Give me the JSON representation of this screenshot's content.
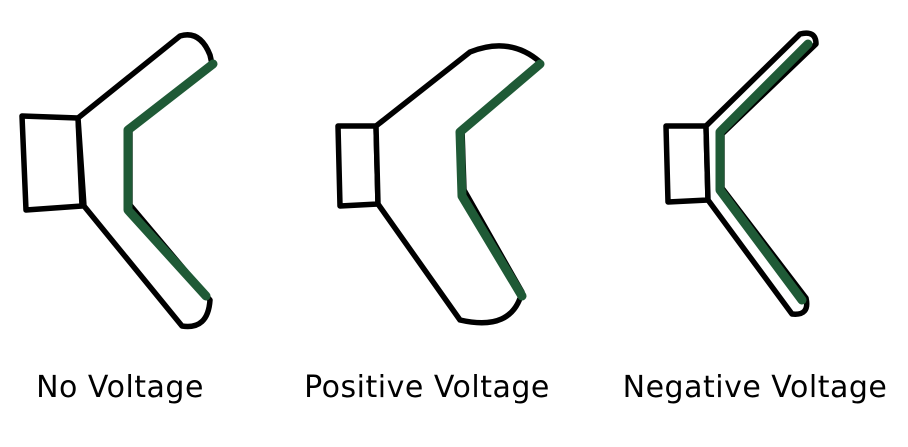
{
  "colors": {
    "outline": "#000000",
    "electrode": "#1f5a36",
    "background": "#ffffff"
  },
  "panels": [
    {
      "caption": "No Voltage"
    },
    {
      "caption": "Positive Voltage"
    },
    {
      "caption": "Negative Voltage"
    }
  ]
}
